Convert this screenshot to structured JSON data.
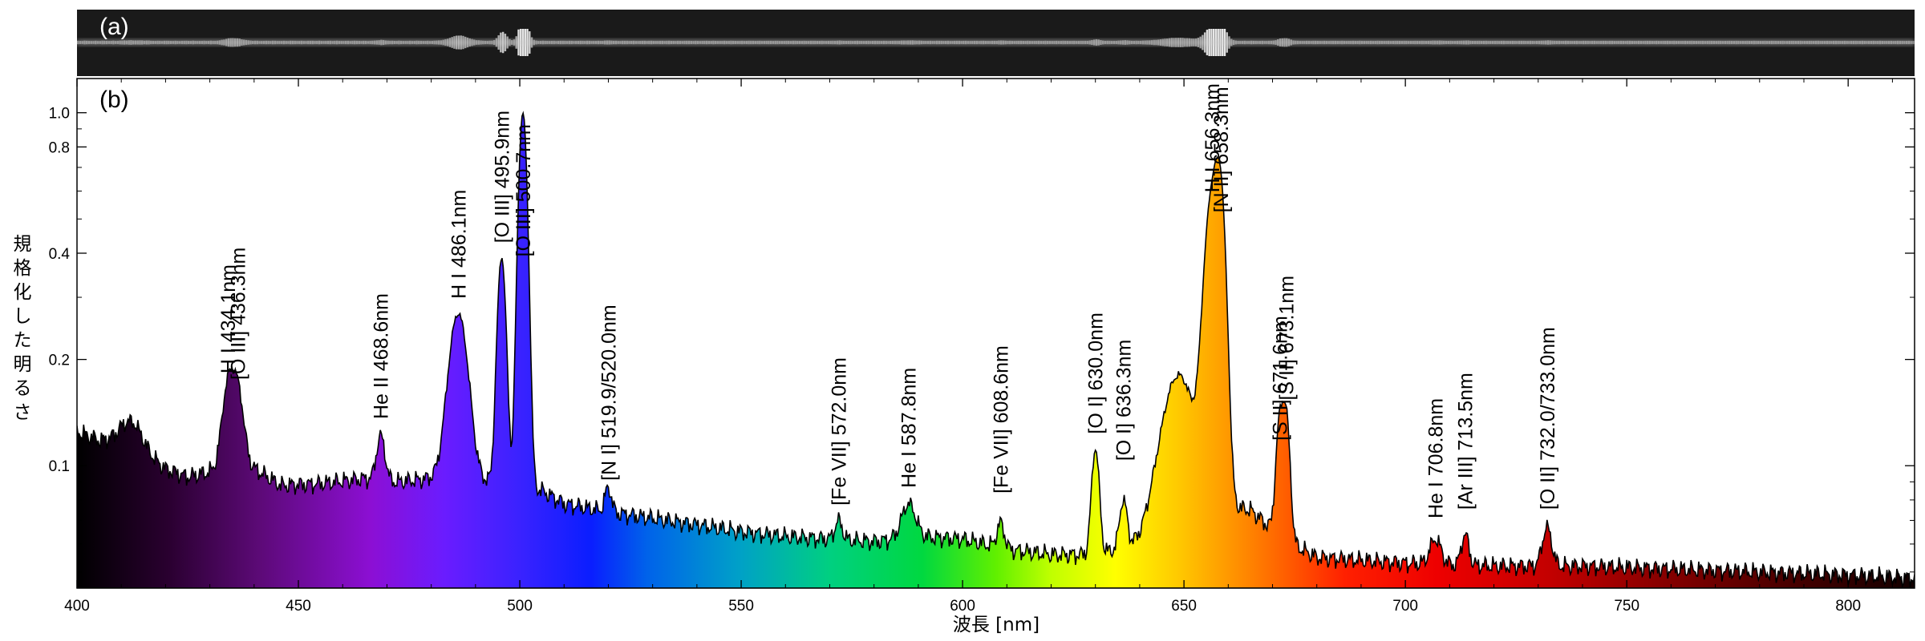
{
  "chart_data": {
    "type": "area",
    "panels": {
      "a": "(a)",
      "b": "(b)"
    },
    "xlabel": "波長 [nm]",
    "ylabel": "規格化した明るさ",
    "xlim": [
      400,
      815
    ],
    "ylim": [
      0.045,
      1.25
    ],
    "yscale": "log",
    "xticks": [
      400,
      450,
      500,
      550,
      600,
      650,
      700,
      750,
      800
    ],
    "yticks": [
      {
        "value": 0.1,
        "label": "0.1"
      },
      {
        "value": 0.2,
        "label": "0.2"
      },
      {
        "value": 0.4,
        "label": "0.4"
      },
      {
        "value": 0.8,
        "label": "0.8"
      },
      {
        "value": 1.0,
        "label": "1.0"
      }
    ],
    "grid": false,
    "spectrum_continuum": [
      [
        400,
        0.125
      ],
      [
        405,
        0.118
      ],
      [
        410,
        0.12
      ],
      [
        420,
        0.098
      ],
      [
        425,
        0.093
      ],
      [
        430,
        0.096
      ],
      [
        440,
        0.098
      ],
      [
        446,
        0.088
      ],
      [
        455,
        0.089
      ],
      [
        465,
        0.092
      ],
      [
        472,
        0.09
      ],
      [
        480,
        0.092
      ],
      [
        490,
        0.091
      ],
      [
        500,
        0.087
      ],
      [
        505,
        0.085
      ],
      [
        510,
        0.078
      ],
      [
        520,
        0.074
      ],
      [
        530,
        0.071
      ],
      [
        540,
        0.068
      ],
      [
        550,
        0.065
      ],
      [
        560,
        0.063
      ],
      [
        570,
        0.062
      ],
      [
        580,
        0.061
      ],
      [
        590,
        0.063
      ],
      [
        600,
        0.062
      ],
      [
        610,
        0.058
      ],
      [
        620,
        0.056
      ],
      [
        630,
        0.056
      ],
      [
        640,
        0.06
      ],
      [
        645,
        0.066
      ],
      [
        650,
        0.08
      ],
      [
        665,
        0.075
      ],
      [
        672,
        0.062
      ],
      [
        680,
        0.055
      ],
      [
        690,
        0.054
      ],
      [
        700,
        0.053
      ],
      [
        720,
        0.052
      ],
      [
        740,
        0.052
      ],
      [
        760,
        0.051
      ],
      [
        780,
        0.05
      ],
      [
        800,
        0.049
      ],
      [
        815,
        0.048
      ]
    ],
    "emission_lines": [
      {
        "wavelength": 412.5,
        "peak": 0.133,
        "width": 2.2
      },
      {
        "wavelength": 434.1,
        "peak": 0.165,
        "width": 1.3,
        "label": "H I 434.1nm"
      },
      {
        "wavelength": 436.3,
        "peak": 0.16,
        "width": 1.3,
        "label": "[O III] 436.3nm"
      },
      {
        "wavelength": 468.6,
        "peak": 0.122,
        "width": 0.9,
        "label": "He II 468.6nm"
      },
      {
        "wavelength": 486.1,
        "peak": 0.27,
        "width": 2.0,
        "label": "H I 486.1nm"
      },
      {
        "wavelength": 495.9,
        "peak": 0.39,
        "width": 0.9,
        "label": "[O III] 495.9nm"
      },
      {
        "wavelength": 500.7,
        "peak": 1.0,
        "width": 0.9,
        "label": "[O III] 500.7nm"
      },
      {
        "wavelength": 519.9,
        "peak": 0.079,
        "width": 0.7
      },
      {
        "wavelength": 520.0,
        "peak": 0.082,
        "width": 0.7,
        "label": "[N I] 519.9/520.0nm"
      },
      {
        "wavelength": 572.0,
        "peak": 0.07,
        "width": 0.8,
        "label": "[Fe VII] 572.0nm"
      },
      {
        "wavelength": 587.8,
        "peak": 0.078,
        "width": 1.5,
        "label": "He I 587.8nm"
      },
      {
        "wavelength": 608.6,
        "peak": 0.069,
        "width": 0.8,
        "label": "[Fe VII] 608.6nm"
      },
      {
        "wavelength": 630.0,
        "peak": 0.112,
        "width": 0.8,
        "label": "[O I] 630.0nm"
      },
      {
        "wavelength": 636.3,
        "peak": 0.08,
        "width": 0.8,
        "label": "[O I] 636.3nm"
      },
      {
        "wavelength": 648.5,
        "peak": 0.18,
        "width": 3.5
      },
      {
        "wavelength": 656.3,
        "peak": 0.56,
        "width": 1.6,
        "label": "H I 656.3nm"
      },
      {
        "wavelength": 658.3,
        "peak": 0.47,
        "width": 1.1,
        "label": "[N II] 658.3nm"
      },
      {
        "wavelength": 671.6,
        "peak": 0.13,
        "width": 0.8,
        "label": "[S II] 671.6nm"
      },
      {
        "wavelength": 673.1,
        "peak": 0.135,
        "width": 0.8,
        "label": "[S II] 673.1nm"
      },
      {
        "wavelength": 706.8,
        "peak": 0.062,
        "width": 1.2,
        "label": "He I 706.8nm"
      },
      {
        "wavelength": 713.5,
        "peak": 0.064,
        "width": 0.8,
        "label": "[Ar III] 713.5nm"
      },
      {
        "wavelength": 732.0,
        "peak": 0.067,
        "width": 1.0,
        "label": "[O II] 732.0/733.0nm"
      }
    ],
    "label_groups": [
      {
        "name": "label-h-434",
        "text": "H I 434.1nm",
        "wavelength": 434.1,
        "y": 0.175
      },
      {
        "name": "label-oiii-436",
        "text": "[O III] 436.3nm",
        "wavelength": 436.3,
        "y": 0.168
      },
      {
        "name": "label-heii-468",
        "text": "He II 468.6nm",
        "wavelength": 468.6,
        "y": 0.13
      },
      {
        "name": "label-h-486",
        "text": "H I 486.1nm",
        "wavelength": 486.1,
        "y": 0.285
      },
      {
        "name": "label-oiii-495",
        "text": "[O III] 495.9nm",
        "wavelength": 495.9,
        "y": 0.41
      },
      {
        "name": "label-oiii-500",
        "text": "[O III] 500.7nm",
        "wavelength": 500.7,
        "y": 0.375
      },
      {
        "name": "label-ni-520",
        "text": "[N I] 519.9/520.0nm",
        "wavelength": 520.0,
        "y": 0.087
      },
      {
        "name": "label-fevii-572",
        "text": "[Fe VII] 572.0nm",
        "wavelength": 572.0,
        "y": 0.074
      },
      {
        "name": "label-hei-587",
        "text": "He I 587.8nm",
        "wavelength": 587.8,
        "y": 0.083
      },
      {
        "name": "label-fevii-608",
        "text": "[Fe VII] 608.6nm",
        "wavelength": 608.6,
        "y": 0.08
      },
      {
        "name": "label-oi-630",
        "text": "[O I] 630.0nm",
        "wavelength": 630.0,
        "y": 0.118
      },
      {
        "name": "label-oi-636",
        "text": "[O I] 636.3nm",
        "wavelength": 636.3,
        "y": 0.099
      },
      {
        "name": "label-h-656",
        "text": "H I 656.3nm",
        "wavelength": 656.3,
        "y": 0.57
      },
      {
        "name": "label-nii-658",
        "text": "[N II] 658.3nm",
        "wavelength": 658.3,
        "y": 0.5
      },
      {
        "name": "label-sii-671",
        "text": "[S II] 671.6nm",
        "wavelength": 671.6,
        "y": 0.113
      },
      {
        "name": "label-sii-673",
        "text": "[S II] 673.1nm",
        "wavelength": 673.1,
        "y": 0.147
      },
      {
        "name": "label-hei-706",
        "text": "He I 706.8nm",
        "wavelength": 706.8,
        "y": 0.068
      },
      {
        "name": "label-ariii-713",
        "text": "[Ar III] 713.5nm",
        "wavelength": 713.5,
        "y": 0.072
      },
      {
        "name": "label-oii-732",
        "text": "[O II] 732.0/733.0nm",
        "wavelength": 732.0,
        "y": 0.072
      }
    ]
  }
}
